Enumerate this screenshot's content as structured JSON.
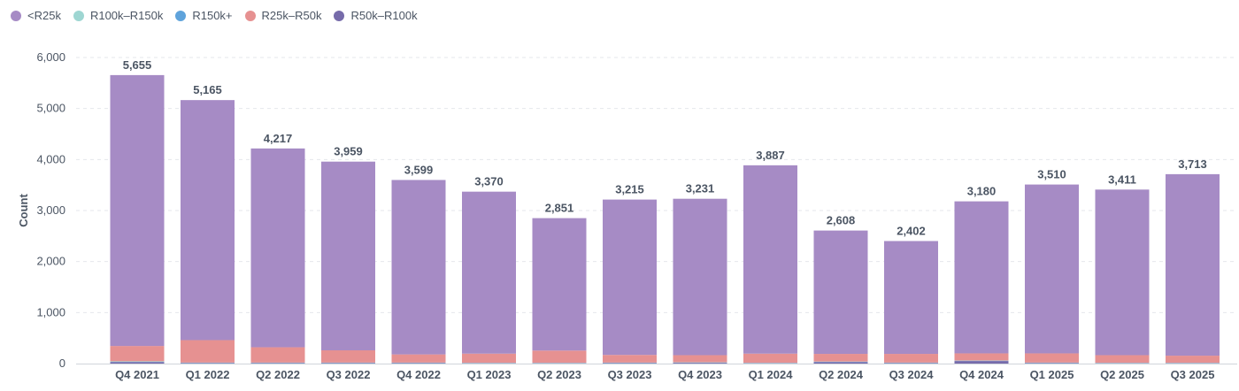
{
  "legend": {
    "items": [
      {
        "label": "<R25k",
        "color": "#A68BC5"
      },
      {
        "label": "R100k–R150k",
        "color": "#9ED6D2"
      },
      {
        "label": "R150k+",
        "color": "#5FA3DB"
      },
      {
        "label": "R25k–R50k",
        "color": "#E69191"
      },
      {
        "label": "R50k–R100k",
        "color": "#766BAA"
      }
    ]
  },
  "chart_data": {
    "type": "bar",
    "stacked": true,
    "title": "",
    "xlabel": "",
    "ylabel": "Count",
    "ylim": [
      0,
      6000
    ],
    "yticks": [
      0,
      1000,
      2000,
      3000,
      4000,
      5000,
      6000
    ],
    "grid": true,
    "legend_position": "top-left",
    "categories": [
      "Q4 2021",
      "Q1 2022",
      "Q2 2022",
      "Q3 2022",
      "Q4 2022",
      "Q1 2023",
      "Q2 2023",
      "Q3 2023",
      "Q4 2023",
      "Q1 2024",
      "Q2 2024",
      "Q3 2024",
      "Q4 2024",
      "Q1 2025",
      "Q2 2025",
      "Q3 2025"
    ],
    "totals": [
      5655,
      5165,
      4217,
      3959,
      3599,
      3370,
      2851,
      3215,
      3231,
      3887,
      2608,
      2402,
      3180,
      3510,
      3411,
      3713
    ],
    "series": [
      {
        "name": "R50k–R100k",
        "color": "#766BAA",
        "values": [
          30,
          10,
          10,
          10,
          10,
          5,
          5,
          10,
          15,
          5,
          30,
          10,
          50,
          10,
          5,
          5
        ]
      },
      {
        "name": "R150k+",
        "color": "#5FA3DB",
        "values": [
          5,
          5,
          5,
          5,
          5,
          5,
          5,
          5,
          5,
          5,
          5,
          5,
          5,
          5,
          5,
          5
        ]
      },
      {
        "name": "R100k–R150k",
        "color": "#9ED6D2",
        "values": [
          10,
          5,
          5,
          5,
          5,
          5,
          5,
          5,
          5,
          5,
          5,
          5,
          5,
          5,
          5,
          5
        ]
      },
      {
        "name": "R25k–R50k",
        "color": "#E69191",
        "values": [
          300,
          440,
          300,
          240,
          160,
          180,
          240,
          150,
          140,
          180,
          150,
          170,
          140,
          180,
          150,
          140
        ]
      },
      {
        "name": "<R25k",
        "color": "#A68BC5",
        "values": [
          5310,
          4705,
          3897,
          3699,
          3419,
          3175,
          2596,
          3045,
          3066,
          3692,
          2418,
          2212,
          2980,
          3310,
          3246,
          3558
        ]
      }
    ]
  }
}
